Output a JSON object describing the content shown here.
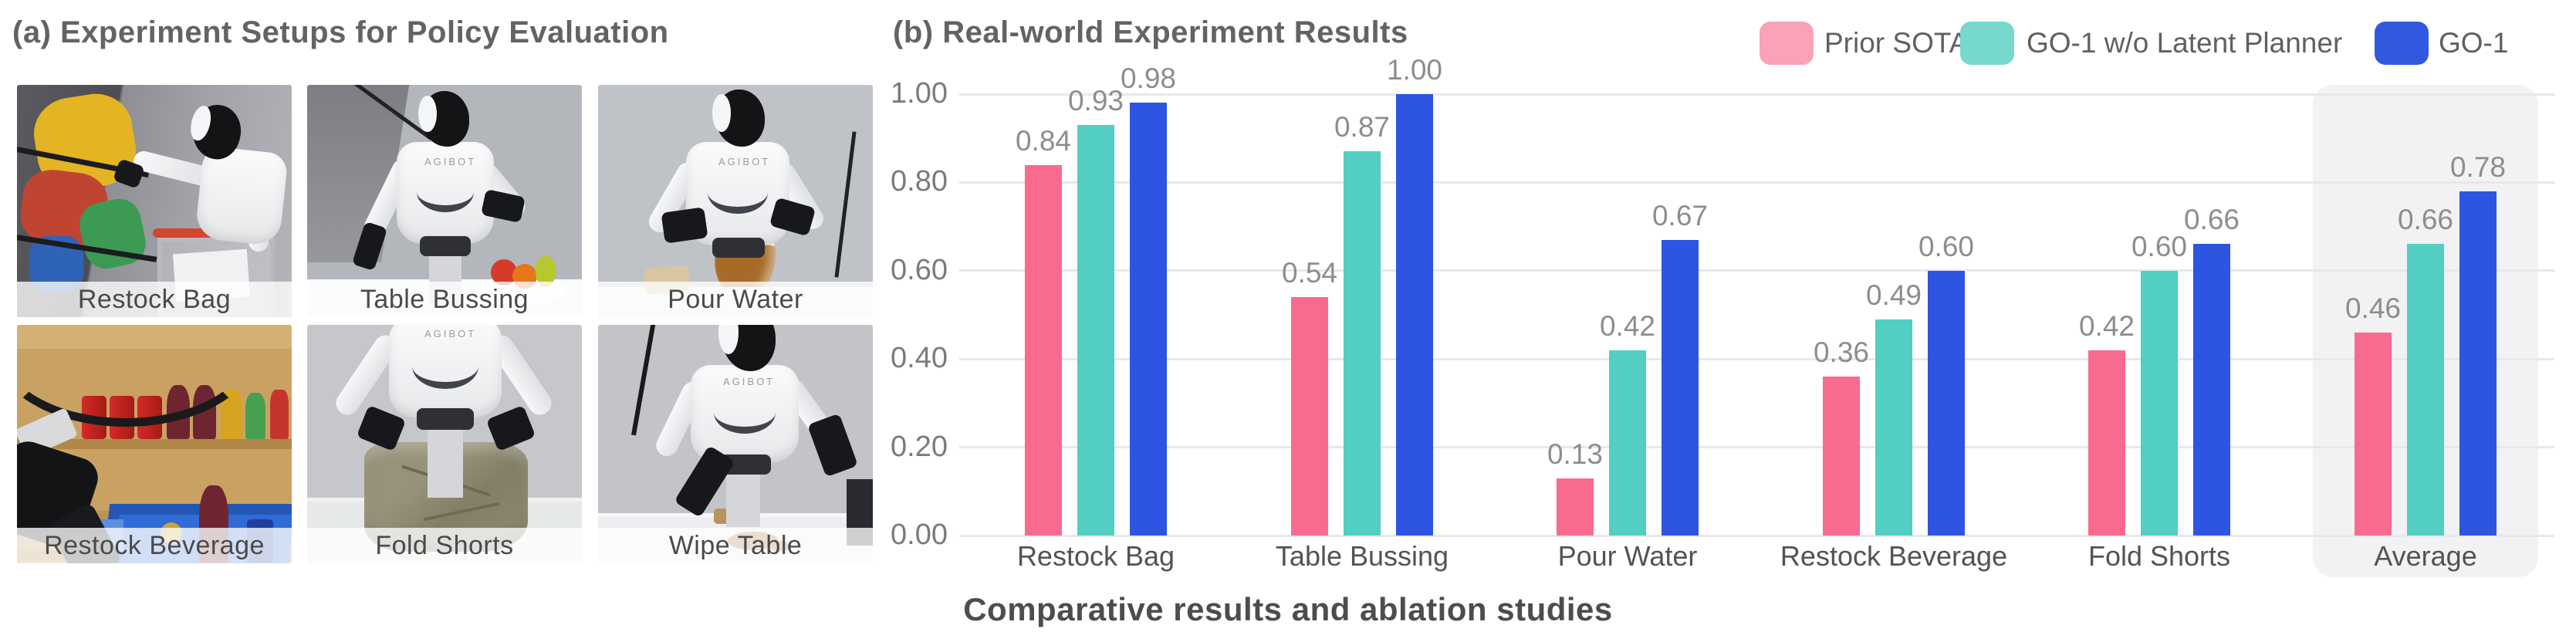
{
  "panel_a": {
    "title": "(a) Experiment Setups for Policy Evaluation",
    "robot_logo": "AGIBOT",
    "photos": [
      {
        "label": "Restock Bag"
      },
      {
        "label": "Table Bussing"
      },
      {
        "label": "Pour Water"
      },
      {
        "label": "Restock Beverage"
      },
      {
        "label": "Fold Shorts"
      },
      {
        "label": "Wipe Table"
      }
    ]
  },
  "panel_b": {
    "title": "(b) Real-world Experiment Results",
    "caption": "Comparative results and ablation studies"
  },
  "chart_data": {
    "type": "bar",
    "title": "(b) Real-world Experiment Results",
    "categories": [
      "Restock Bag",
      "Table Bussing",
      "Pour Water",
      "Restock Beverage",
      "Fold Shorts",
      "Average"
    ],
    "series": [
      {
        "name": "Prior SOTA",
        "color": "#F96A8F",
        "legend_color": "#F9A2B8",
        "values": [
          0.84,
          0.54,
          0.13,
          0.36,
          0.42,
          0.46
        ]
      },
      {
        "name": "GO-1 w/o Latent Planner",
        "color": "#52CEC3",
        "legend_color": "#77D8CE",
        "values": [
          0.93,
          0.87,
          0.42,
          0.49,
          0.6,
          0.66
        ]
      },
      {
        "name": "GO-1",
        "color": "#2D55E2",
        "legend_color": "#3158DE",
        "values": [
          0.98,
          1.0,
          0.67,
          0.6,
          0.66,
          0.78
        ]
      }
    ],
    "ylim": [
      0,
      1.0
    ],
    "yticks": [
      "0.00",
      "0.20",
      "0.40",
      "0.60",
      "0.80",
      "1.00"
    ],
    "grid": true,
    "value_labels": true,
    "legend_position": "top-right",
    "highlight_category": "Average",
    "highlight_color": "#f2f2f4"
  }
}
